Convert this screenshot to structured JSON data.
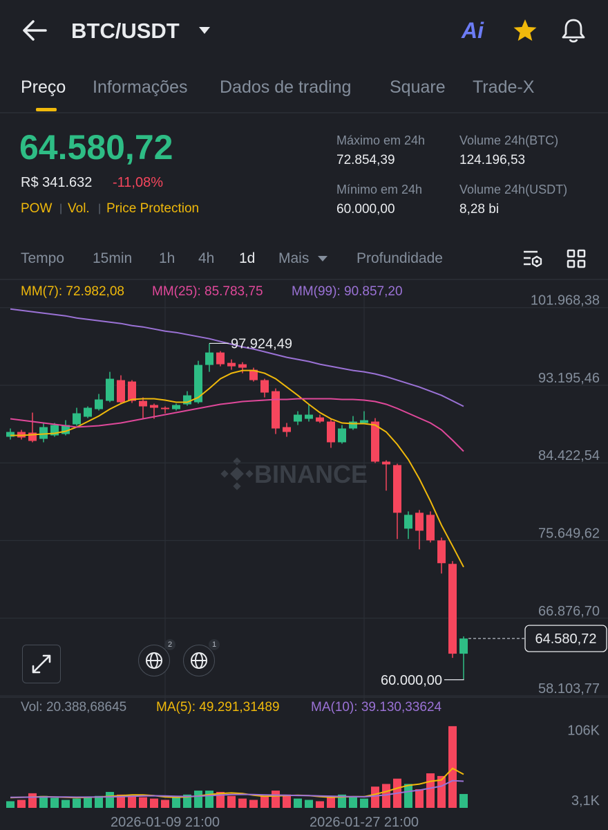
{
  "header": {
    "pair": "BTC/USDT",
    "ai": "Ai"
  },
  "tabs": [
    "Preço",
    "Informações",
    "Dados de trading",
    "Square",
    "Trade-X"
  ],
  "price": {
    "last": "64.580,72",
    "fiat": "R$ 341.632",
    "change": "-11,08%",
    "tags": [
      "POW",
      "Vol.",
      "Price Protection"
    ]
  },
  "stats": [
    {
      "label": "Máximo em 24h",
      "value": "72.854,39"
    },
    {
      "label": "Volume 24h(BTC)",
      "value": "124.196,53"
    },
    {
      "label": "Mínimo em 24h",
      "value": "60.000,00"
    },
    {
      "label": "Volume 24h(USDT)",
      "value": "8,28 bi"
    }
  ],
  "intervals": [
    "Tempo",
    "15min",
    "1h",
    "4h",
    "1d",
    "Mais",
    "Profundidade"
  ],
  "chart_tools": {
    "badges": [
      "2",
      "1"
    ]
  },
  "chart_data": [
    {
      "type": "candlestick",
      "categories": [
        null,
        null,
        null,
        null,
        null,
        null,
        null,
        null,
        null,
        null,
        null,
        null,
        null,
        null,
        "2026-01-09 21:00",
        null,
        null,
        null,
        null,
        null,
        null,
        null,
        null,
        null,
        null,
        null,
        null,
        null,
        null,
        null,
        null,
        null,
        "2026-01-27 21:00",
        null,
        null,
        null,
        null,
        null,
        null,
        null,
        null,
        null
      ],
      "open": [
        87373,
        87919,
        87841,
        87139,
        87529,
        87685,
        88778,
        89637,
        90495,
        91432,
        93773,
        93617,
        91432,
        90963,
        90651,
        90495,
        91041,
        91276,
        95490,
        96895,
        95724,
        95568,
        94944,
        93773,
        92524,
        88466,
        89090,
        89402,
        89559,
        89090,
        86749,
        88310,
        88934,
        89090,
        84564,
        84174,
        76993,
        78788,
        78554,
        75666,
        73013,
        62865
      ],
      "high": [
        88310,
        88154,
        90105,
        88934,
        88934,
        89246,
        90651,
        90807,
        92212,
        94710,
        94319,
        93773,
        91822,
        91120,
        90807,
        91120,
        92524,
        95958,
        97924.49,
        97051,
        96114,
        95802,
        95178,
        93929,
        92836,
        88934,
        90261,
        91041,
        89871,
        89402,
        88700,
        89715,
        90261,
        89480,
        84720,
        84330,
        78944,
        79100,
        78944,
        75978,
        73325,
        64815
      ],
      "low": [
        87061,
        87061,
        86749,
        86749,
        87373,
        87529,
        88622,
        89480,
        90339,
        91276,
        91041,
        91197,
        89402,
        89402,
        90027,
        90339,
        90885,
        91120,
        94710,
        95334,
        94944,
        94554,
        93617,
        91822,
        87685,
        87373,
        88700,
        89090,
        88934,
        86125,
        86593,
        88154,
        88778,
        84408,
        81286,
        75822,
        75822,
        74652,
        75432,
        71920,
        62397,
        60000
      ],
      "close": [
        87919,
        87295,
        86905,
        88466,
        88700,
        88700,
        90027,
        90651,
        91588,
        93929,
        91276,
        91432,
        90807,
        90651,
        90495,
        90963,
        92056,
        95490,
        96895,
        95568,
        95334,
        95178,
        93773,
        92368,
        88310,
        87919,
        89871,
        89871,
        89090,
        86749,
        88310,
        89090,
        89246,
        84564,
        84252,
        78788,
        78554,
        76759,
        75666,
        73091,
        62865,
        64580.72
      ],
      "up_color": "#2ebd85",
      "down_color": "#f6465d",
      "ylim": [
        57950,
        105150
      ],
      "yticks": [
        {
          "value": 101968.38,
          "label": "101.968,38"
        },
        {
          "value": 93195.46,
          "label": "93.195,46"
        },
        {
          "value": 84422.54,
          "label": "84.422,54"
        },
        {
          "value": 75649.62,
          "label": "75.649,62"
        },
        {
          "value": 66876.7,
          "label": "66.876,70"
        },
        {
          "value": 58103.77,
          "label": "58.103,77"
        }
      ],
      "grid": true,
      "lines": [
        {
          "name": "MM(7): 72.982,08",
          "color": "#f0b90b",
          "values": [
            87529,
            87529,
            87607,
            87685,
            87763,
            87997,
            88466,
            89090,
            89715,
            90495,
            91120,
            91588,
            91666,
            91666,
            91510,
            91276,
            91276,
            91822,
            92836,
            93929,
            94554,
            94866,
            94866,
            94554,
            93929,
            92992,
            92056,
            91041,
            90105,
            89402,
            88934,
            88856,
            88856,
            88700,
            87919,
            86515,
            84798,
            82612,
            80114,
            77383,
            75041,
            72655
          ]
        },
        {
          "name": "MM(25): 85.783,75",
          "color": "#e0489a",
          "values": [
            89402,
            89246,
            89090,
            88934,
            88778,
            88622,
            88466,
            88544,
            88622,
            88778,
            88934,
            89168,
            89402,
            89637,
            89871,
            90105,
            90339,
            90573,
            90807,
            91041,
            91197,
            91354,
            91432,
            91510,
            91588,
            91588,
            91666,
            91666,
            91666,
            91666,
            91588,
            91588,
            91510,
            91354,
            91041,
            90573,
            90027,
            89480,
            88934,
            88154,
            86983,
            85734
          ]
        },
        {
          "name": "MM(99): 90.857,20",
          "color": "#9b72d6",
          "values": [
            101812,
            101656,
            101500,
            101344,
            101187,
            101031,
            100797,
            100641,
            100485,
            100329,
            100173,
            99939,
            99783,
            99549,
            99315,
            99159,
            98924,
            98690,
            98456,
            98144,
            97832,
            97520,
            97285,
            96973,
            96661,
            96349,
            96114,
            95880,
            95568,
            95334,
            95100,
            94866,
            94710,
            94475,
            94163,
            93773,
            93383,
            92992,
            92524,
            92056,
            91432,
            90807
          ]
        }
      ],
      "last_price": {
        "value": 64580.72,
        "label": "64.580,72"
      },
      "high_marker": {
        "value": 97924.49,
        "label": "97.924,49"
      },
      "low_marker": {
        "value": 60000,
        "label": "60.000,00"
      },
      "watermark": "BINANCE"
    },
    {
      "type": "bar",
      "title": "Vol: 20.388,68645",
      "values": [
        9760,
        11712,
        21472,
        17568,
        14640,
        11712,
        13664,
        15616,
        17568,
        23424,
        19520,
        17568,
        15616,
        13664,
        11712,
        15616,
        19520,
        25376,
        25376,
        23424,
        17568,
        13664,
        11712,
        17568,
        25376,
        19520,
        13664,
        11712,
        9760,
        15616,
        19520,
        15616,
        13664,
        31232,
        35136,
        42944,
        35136,
        27328,
        50752,
        46848,
        120048,
        20388.68645
      ],
      "ylim": [
        0,
        125000
      ],
      "yticks": [
        {
          "value": 106000,
          "label": "106K"
        },
        {
          "value": 3100,
          "label": "3,1K"
        }
      ],
      "lines": [
        {
          "name": "MA(5): 49.291,31489",
          "color": "#f0b90b",
          "values": [
            15000,
            15500,
            16000,
            16500,
            16000,
            15500,
            15000,
            15500,
            16000,
            17000,
            18000,
            19000,
            19000,
            18000,
            16000,
            15500,
            16000,
            17500,
            19500,
            21000,
            22000,
            21000,
            18500,
            17000,
            17500,
            18000,
            18500,
            18000,
            16500,
            15500,
            16000,
            16500,
            16500,
            20000,
            24000,
            29000,
            33000,
            35000,
            39000,
            41000,
            58000,
            49291.31489
          ]
        },
        {
          "name": "MA(10): 39.130,33624",
          "color": "#9b72d6",
          "values": [
            15500,
            15600,
            15800,
            16000,
            16100,
            16000,
            15800,
            15900,
            16000,
            16200,
            16500,
            17000,
            17500,
            17800,
            17500,
            17000,
            16800,
            17200,
            18000,
            18800,
            19500,
            19800,
            19500,
            19000,
            18800,
            18500,
            18200,
            18000,
            17500,
            17200,
            16800,
            16500,
            16300,
            17500,
            19000,
            21500,
            24000,
            26000,
            29000,
            32000,
            40000,
            39130.33624
          ]
        }
      ]
    }
  ]
}
